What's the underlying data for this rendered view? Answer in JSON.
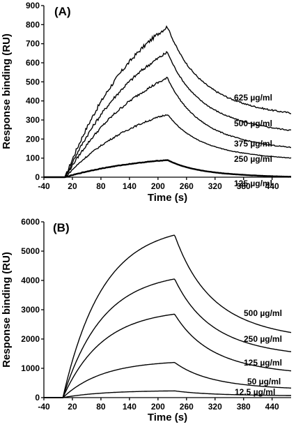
{
  "chart_data": [
    {
      "type": "line",
      "panel_label": "(A)",
      "xlabel": "Time (s)",
      "ylabel": "Response binding (RU)",
      "xlim": [
        -40,
        480
      ],
      "ylim": [
        0,
        900
      ],
      "x_ticks": [
        -40,
        20,
        80,
        140,
        200,
        260,
        320,
        380,
        440
      ],
      "y_ticks": [
        0,
        100,
        200,
        300,
        400,
        500,
        600,
        700,
        800,
        900
      ],
      "series": [
        {
          "name": "625 µg/ml",
          "peak": 790,
          "end": 335,
          "thick": false
        },
        {
          "name": "500 µg/ml",
          "peak": 655,
          "end": 245,
          "thick": false
        },
        {
          "name": "375 µg/ml",
          "peak": 520,
          "end": 155,
          "thick": false
        },
        {
          "name": "250 µg/ml",
          "peak": 330,
          "end": 100,
          "thick": false
        },
        {
          "name": "125 µg/ml",
          "peak": 90,
          "end": 2,
          "thick": true
        }
      ],
      "injection_start": 5,
      "injection_end": 220
    },
    {
      "type": "line",
      "panel_label": "(B)",
      "xlabel": "Time (s)",
      "ylabel": "Response binding (RU)",
      "xlim": [
        -40,
        480
      ],
      "ylim": [
        0,
        6000
      ],
      "x_ticks": [
        -40,
        20,
        80,
        140,
        200,
        260,
        320,
        380,
        440
      ],
      "y_ticks": [
        0,
        1000,
        2000,
        3000,
        4000,
        5000,
        6000
      ],
      "series": [
        {
          "name": "500 µg/ml",
          "peak": 5550,
          "end": 2200,
          "thick": false
        },
        {
          "name": "250 µg/ml",
          "peak": 4050,
          "end": 1550,
          "thick": false
        },
        {
          "name": "125 µg/ml",
          "peak": 2850,
          "end": 900,
          "thick": false
        },
        {
          "name": "50 µg/ml",
          "peak": 1200,
          "end": 320,
          "thick": false
        },
        {
          "name": "12.5 µg/ml",
          "peak": 230,
          "end": 70,
          "thick": false
        }
      ],
      "injection_start": 0,
      "injection_end": 235
    }
  ]
}
